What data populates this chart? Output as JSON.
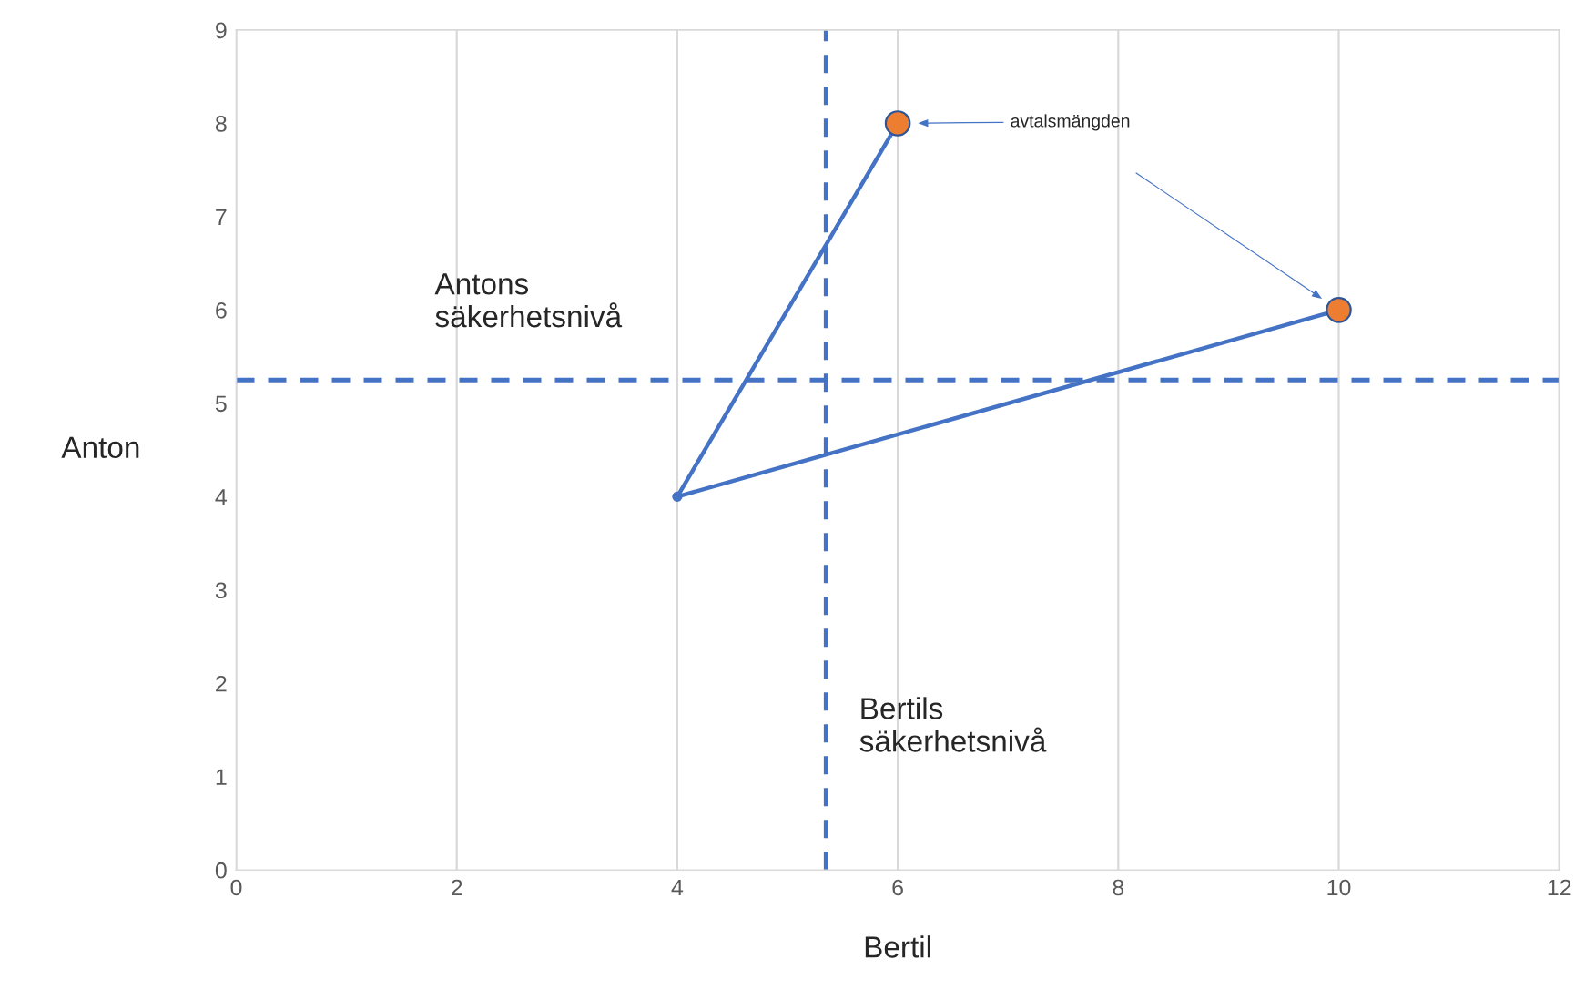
{
  "chart_data": {
    "type": "line",
    "xlabel": "Bertil",
    "ylabel": "Anton",
    "xlim": [
      0,
      12
    ],
    "xticks": [
      0,
      2,
      4,
      6,
      8,
      10,
      12
    ],
    "ylim": [
      0,
      9
    ],
    "yticks": [
      0,
      1,
      2,
      3,
      4,
      5,
      6,
      7,
      8,
      9
    ],
    "grid": "x",
    "series": [
      {
        "color": "#4472c4",
        "x": [
          6,
          4,
          10
        ],
        "values": [
          8,
          4,
          6
        ],
        "marker": "circle"
      },
      {
        "type": "scatter",
        "color": "#ed7d31",
        "x": [
          6,
          10
        ],
        "values": [
          8,
          6
        ]
      }
    ],
    "ref_lines": [
      {
        "axis": "y",
        "value": 5.25,
        "label": "Antons\nsäkerhetsnivå",
        "color": "#4472c4",
        "line_style": "dashed"
      },
      {
        "axis": "x",
        "value": 5.35,
        "label": "Bertils\nsäkerhetsnivå",
        "color": "#4472c4",
        "line_style": "dashed"
      }
    ],
    "annotations": [
      "avtalsmängden"
    ]
  }
}
